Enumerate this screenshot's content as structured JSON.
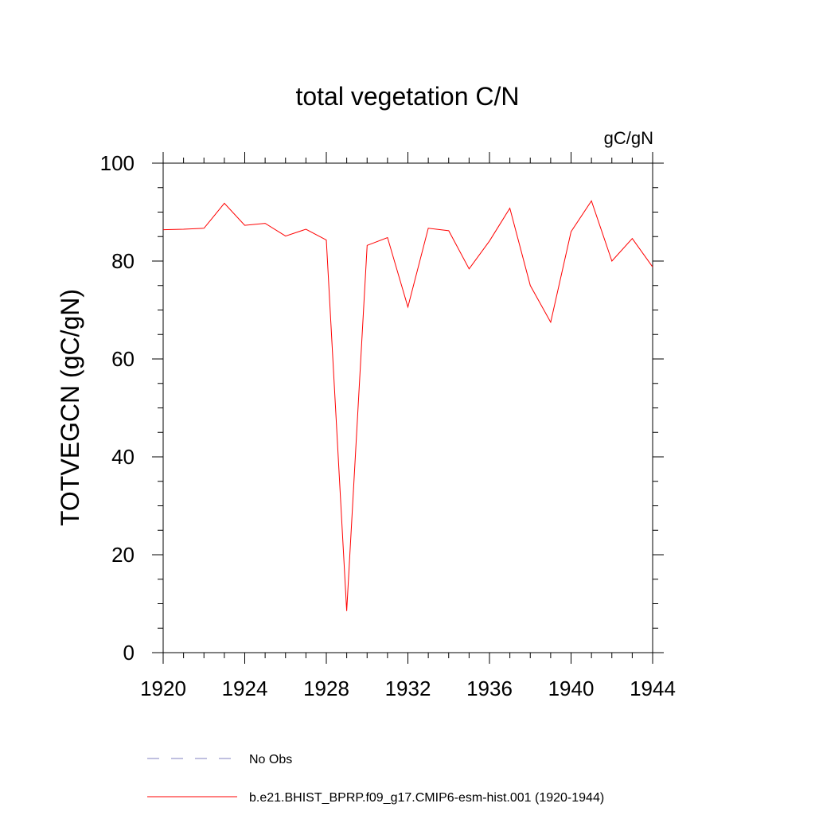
{
  "chart_data": {
    "type": "line",
    "title": "total vegetation C/N",
    "units": "gC/gN",
    "ylabel": "TOTVEGCN  (gC/gN)",
    "xlabel": "",
    "xlim": [
      1920,
      1944
    ],
    "ylim": [
      0,
      100
    ],
    "x_ticks": [
      1920,
      1924,
      1928,
      1932,
      1936,
      1940,
      1944
    ],
    "x_tick_labels": [
      "1920",
      "1924",
      "1928",
      "1932",
      "1936",
      "1940",
      "1944"
    ],
    "y_ticks": [
      0,
      20,
      40,
      60,
      80,
      100
    ],
    "y_tick_labels": [
      "0",
      "20",
      "40",
      "60",
      "80",
      "100"
    ],
    "grid": false,
    "legend_position": "bottom",
    "series": [
      {
        "name": "b.e21.BHIST_BPRP.f09_g17.CMIP6-esm-hist.001 (1920-1944)",
        "color": "#ff0000",
        "style": "solid",
        "x": [
          1920,
          1921,
          1922,
          1923,
          1924,
          1925,
          1926,
          1927,
          1928,
          1929,
          1930,
          1931,
          1932,
          1933,
          1934,
          1935,
          1936,
          1937,
          1938,
          1939,
          1940,
          1941,
          1942,
          1943,
          1944
        ],
        "y": [
          86.4,
          86.5,
          86.7,
          91.8,
          87.3,
          87.7,
          85.1,
          86.5,
          84.3,
          8.5,
          83.2,
          84.8,
          70.6,
          86.7,
          86.2,
          78.4,
          84.1,
          90.8,
          75.0,
          67.5,
          86.0,
          92.3,
          80.0,
          84.6,
          78.8
        ]
      }
    ],
    "legend": [
      {
        "label": "No Obs",
        "color": "#8080c0",
        "style": "dashed"
      },
      {
        "label": "b.e21.BHIST_BPRP.f09_g17.CMIP6-esm-hist.001 (1920-1944)",
        "color": "#ff0000",
        "style": "solid"
      }
    ]
  }
}
